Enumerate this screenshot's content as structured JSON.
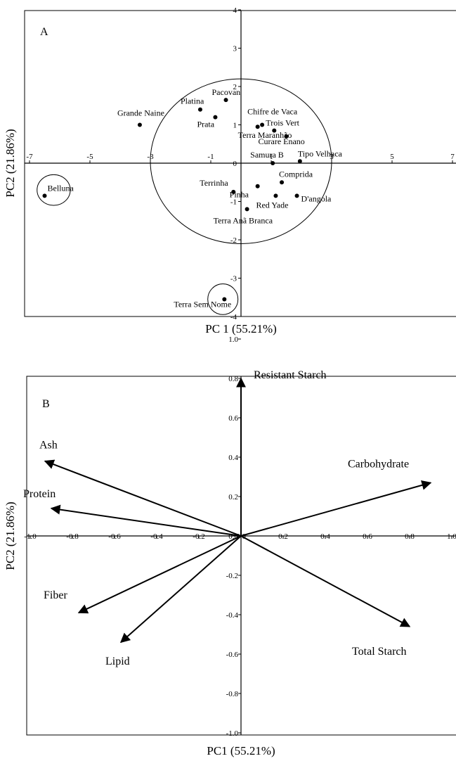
{
  "chart_data": [
    {
      "type": "scatter",
      "panel_label": "A",
      "xlabel": "PC 1 (55.21%)",
      "ylabel": "PC2 (21.86%)",
      "xlim": [
        -7,
        7
      ],
      "ylim": [
        -4,
        4
      ],
      "xticks": [
        "-7",
        "-5",
        "-3",
        "-1",
        "1",
        "3",
        "5",
        "7"
      ],
      "yticks": [
        "-4",
        "-3",
        "-2",
        "-1",
        "0",
        "1",
        "2",
        "3",
        "4"
      ],
      "points": [
        {
          "name": "Belluna",
          "x": -6.5,
          "y": -0.85
        },
        {
          "name": "Grande Naine",
          "x": -3.35,
          "y": 1.0
        },
        {
          "name": "Platina",
          "x": -1.35,
          "y": 1.4
        },
        {
          "name": "Pacovan",
          "x": -0.5,
          "y": 1.65
        },
        {
          "name": "Prata",
          "x": -0.85,
          "y": 1.2
        },
        {
          "name": "Chifre de Vaca",
          "x": 0.7,
          "y": 1.0
        },
        {
          "name": "Terra Maranhão",
          "x": 0.55,
          "y": 0.95
        },
        {
          "name": "Trois Vert",
          "x": 1.1,
          "y": 0.85
        },
        {
          "name": "Curare Enano",
          "x": 1.5,
          "y": 0.7
        },
        {
          "name": "Samura B",
          "x": 1.05,
          "y": 0.0
        },
        {
          "name": "Tipo Velhaca",
          "x": 1.95,
          "y": 0.05
        },
        {
          "name": "Pinha",
          "x": 0.55,
          "y": -0.6
        },
        {
          "name": "Comprida",
          "x": 1.35,
          "y": -0.5
        },
        {
          "name": "Terrinha",
          "x": -0.25,
          "y": -0.75
        },
        {
          "name": "D'angola",
          "x": 1.85,
          "y": -0.85
        },
        {
          "name": "Red Yade",
          "x": 1.15,
          "y": -0.85
        },
        {
          "name": "Terra Anã Branca",
          "x": 0.2,
          "y": -1.2
        },
        {
          "name": "Terra Sem Nome",
          "x": -0.55,
          "y": -3.55
        }
      ],
      "ellipses": [
        {
          "cx": 0.0,
          "cy": 0.05,
          "rx": 3.0,
          "ry": 2.15
        },
        {
          "cx": -6.2,
          "cy": -0.7,
          "rx": 0.55,
          "ry": 0.4
        },
        {
          "cx": -0.6,
          "cy": -3.55,
          "rx": 0.5,
          "ry": 0.4
        }
      ]
    },
    {
      "type": "vector",
      "panel_label": "B",
      "xlabel": "PC1 (55.21%)",
      "ylabel": "PC2 (21.86%)",
      "xlim": [
        -1.0,
        1.0
      ],
      "ylim": [
        -1.0,
        1.0
      ],
      "xticks": [
        "-1.0",
        "-0.8",
        "-0.6",
        "-0.4",
        "-0.2",
        "0.0",
        "0.2",
        "0.4",
        "0.6",
        "0.8",
        "1.0"
      ],
      "yticks": [
        "-1.0",
        "-0.8",
        "-0.6",
        "-0.4",
        "-0.2",
        "0.0",
        "0.2",
        "0.4",
        "0.6",
        "0.8",
        "1.0"
      ],
      "vectors": [
        {
          "name": "Resistant Starch",
          "x": 0.0,
          "y": 0.8
        },
        {
          "name": "Ash",
          "x": -0.93,
          "y": 0.38
        },
        {
          "name": "Protein",
          "x": -0.9,
          "y": 0.14
        },
        {
          "name": "Carbohydrate",
          "x": 0.9,
          "y": 0.27
        },
        {
          "name": "Fiber",
          "x": -0.77,
          "y": -0.39
        },
        {
          "name": "Lipid",
          "x": -0.57,
          "y": -0.54
        },
        {
          "name": "Total Starch",
          "x": 0.8,
          "y": -0.46
        }
      ]
    }
  ]
}
